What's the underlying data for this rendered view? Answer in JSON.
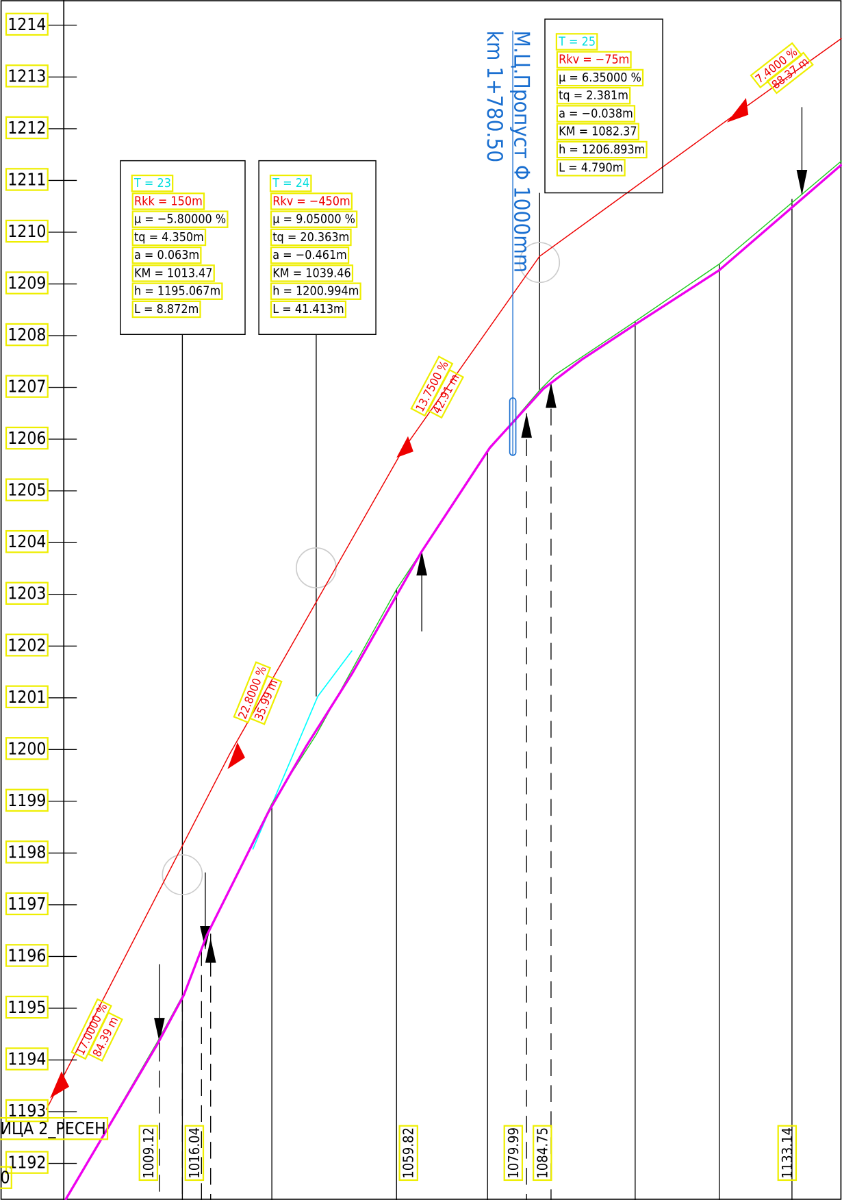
{
  "axis_labels": [
    "1214",
    "1213",
    "1212",
    "1211",
    "1210",
    "1209",
    "1208",
    "1207",
    "1206",
    "1205",
    "1204",
    "1203",
    "1202",
    "1201",
    "1200",
    "1199",
    "1198",
    "1197",
    "1196",
    "1195",
    "1194",
    "1193",
    "1192"
  ],
  "curves": [
    {
      "title": "T = 23",
      "radius": "Rkk = 150m",
      "lines": [
        "μ = −5.80000 %",
        "tq = 4.350m",
        "a = 0.063m",
        "KM = 1013.47",
        "h = 1195.067m",
        "L = 8.872m"
      ]
    },
    {
      "title": "T = 24",
      "radius": "Rkv = −450m",
      "lines": [
        "μ = 9.05000 %",
        "tq = 20.363m",
        "a = −0.461m",
        "KM = 1039.46",
        "h = 1200.994m",
        "L = 41.413m"
      ]
    },
    {
      "title": "T = 25",
      "radius": "Rkv = −75m",
      "lines": [
        "μ = 6.35000 %",
        "tq = 2.381m",
        "a = −0.038m",
        "KM = 1082.37",
        "h = 1206.893m",
        "L = 4.790m"
      ]
    }
  ],
  "grades": [
    {
      "grade": "7.4000 %",
      "length": "88.37 m"
    },
    {
      "grade": "13.7500 %",
      "length": "42.91 m"
    },
    {
      "grade": "22.8000 %",
      "length": "35.99 m"
    },
    {
      "grade": "17.0000 %",
      "length": "84.39 m"
    }
  ],
  "culvert": {
    "name": "М.Ц.Пропуст Φ 1000mm",
    "km": "km 1+780.50"
  },
  "section_label": "ИЦА 2_РЕСЕН",
  "corner_label": "0",
  "stations": [
    "1009.12",
    "1016.04",
    "1059.82",
    "1079.99",
    "1084.75",
    "1133.14"
  ]
}
